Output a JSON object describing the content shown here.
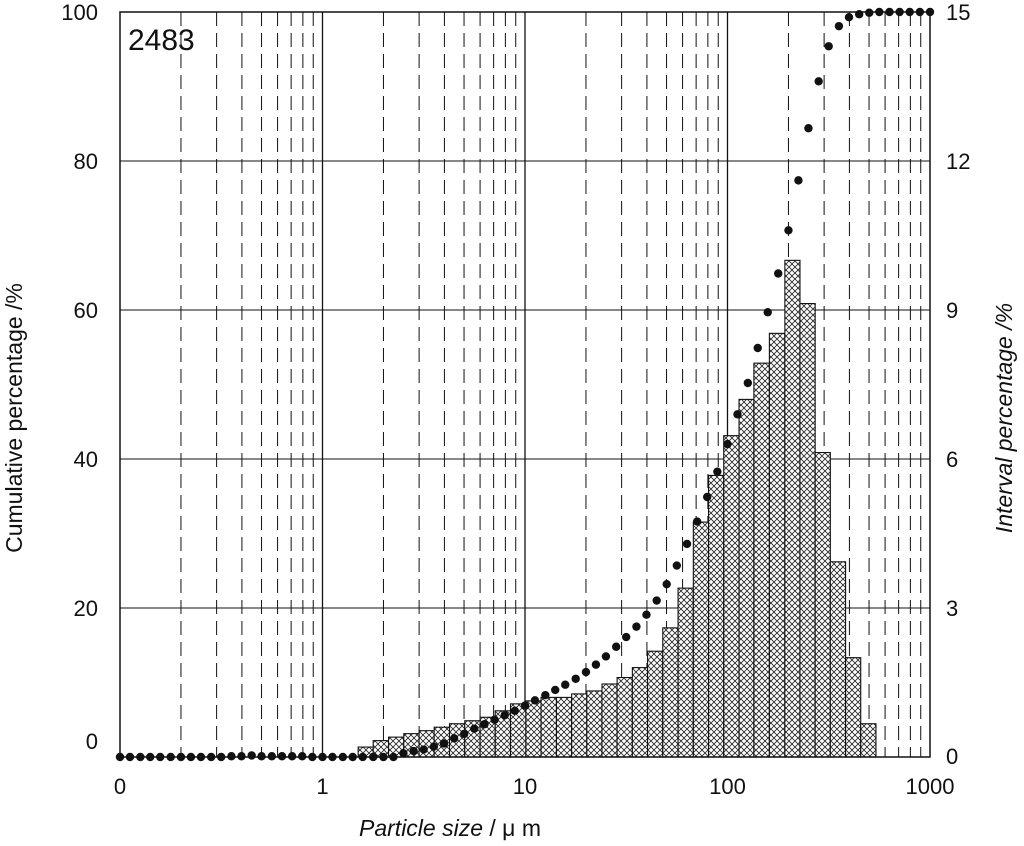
{
  "chart_data": {
    "type": "bar",
    "sample_id": "2483",
    "xlabel_italic": "Particle size",
    "xlabel_unit": " / μ m",
    "ylabel_left": "Cumulative percentage /%",
    "ylabel_right": "Interval percentage /%",
    "x_scale": "log",
    "xlim": [
      0.1,
      1000
    ],
    "x_ticks": [
      {
        "value": 0.1,
        "label": "0"
      },
      {
        "value": 1,
        "label": "1"
      },
      {
        "value": 10,
        "label": "10"
      },
      {
        "value": 100,
        "label": "100"
      },
      {
        "value": 1000,
        "label": "1000"
      }
    ],
    "ylim_left": [
      0,
      100
    ],
    "y_ticks_left": [
      0,
      20,
      40,
      60,
      80,
      100
    ],
    "ylim_right": [
      0,
      15
    ],
    "y_ticks_right": [
      0,
      3,
      6,
      9,
      12,
      15
    ],
    "grid": true,
    "legend": "none",
    "histogram": {
      "name": "Interval percentage",
      "axis": "right",
      "fill": "crosshatch",
      "bins": [
        {
          "x0": 1.5,
          "x1": 1.78,
          "value": 0.2
        },
        {
          "x0": 1.78,
          "x1": 2.12,
          "value": 0.33
        },
        {
          "x0": 2.12,
          "x1": 2.52,
          "value": 0.4
        },
        {
          "x0": 2.52,
          "x1": 3.0,
          "value": 0.47
        },
        {
          "x0": 3.0,
          "x1": 3.56,
          "value": 0.53
        },
        {
          "x0": 3.56,
          "x1": 4.24,
          "value": 0.6
        },
        {
          "x0": 4.24,
          "x1": 5.04,
          "value": 0.67
        },
        {
          "x0": 5.04,
          "x1": 6.0,
          "value": 0.73
        },
        {
          "x0": 6.0,
          "x1": 7.13,
          "value": 0.8
        },
        {
          "x0": 7.13,
          "x1": 8.48,
          "value": 0.93
        },
        {
          "x0": 8.48,
          "x1": 10.1,
          "value": 1.07
        },
        {
          "x0": 10.1,
          "x1": 12.0,
          "value": 1.13
        },
        {
          "x0": 12.0,
          "x1": 14.3,
          "value": 1.2
        },
        {
          "x0": 14.3,
          "x1": 17.0,
          "value": 1.2
        },
        {
          "x0": 17.0,
          "x1": 20.2,
          "value": 1.27
        },
        {
          "x0": 20.2,
          "x1": 24.0,
          "value": 1.33
        },
        {
          "x0": 24.0,
          "x1": 28.5,
          "value": 1.47
        },
        {
          "x0": 28.5,
          "x1": 33.9,
          "value": 1.6
        },
        {
          "x0": 33.9,
          "x1": 40.3,
          "value": 1.8
        },
        {
          "x0": 40.3,
          "x1": 47.9,
          "value": 2.13
        },
        {
          "x0": 47.9,
          "x1": 57.0,
          "value": 2.6
        },
        {
          "x0": 57.0,
          "x1": 67.8,
          "value": 3.4
        },
        {
          "x0": 67.8,
          "x1": 80.6,
          "value": 4.73
        },
        {
          "x0": 80.6,
          "x1": 95.8,
          "value": 5.67
        },
        {
          "x0": 95.8,
          "x1": 114,
          "value": 6.47
        },
        {
          "x0": 114,
          "x1": 135,
          "value": 7.2
        },
        {
          "x0": 135,
          "x1": 161,
          "value": 7.93
        },
        {
          "x0": 161,
          "x1": 192,
          "value": 8.53
        },
        {
          "x0": 192,
          "x1": 228,
          "value": 10.0
        },
        {
          "x0": 228,
          "x1": 271,
          "value": 9.13
        },
        {
          "x0": 271,
          "x1": 322,
          "value": 6.13
        },
        {
          "x0": 322,
          "x1": 383,
          "value": 3.93
        },
        {
          "x0": 383,
          "x1": 455,
          "value": 2.0
        },
        {
          "x0": 455,
          "x1": 541,
          "value": 0.67
        }
      ]
    },
    "cumulative": {
      "name": "Cumulative percentage",
      "axis": "left",
      "marker": "filled-circle",
      "points": [
        {
          "x": 0.1,
          "y": 0
        },
        {
          "x": 0.112,
          "y": 0
        },
        {
          "x": 0.126,
          "y": 0
        },
        {
          "x": 0.141,
          "y": 0
        },
        {
          "x": 0.158,
          "y": 0
        },
        {
          "x": 0.178,
          "y": 0
        },
        {
          "x": 0.2,
          "y": 0
        },
        {
          "x": 0.224,
          "y": 0
        },
        {
          "x": 0.251,
          "y": 0
        },
        {
          "x": 0.282,
          "y": 0
        },
        {
          "x": 0.316,
          "y": 0
        },
        {
          "x": 0.355,
          "y": 0.1
        },
        {
          "x": 0.398,
          "y": 0.1
        },
        {
          "x": 0.447,
          "y": 0.2
        },
        {
          "x": 0.5,
          "y": 0.1
        },
        {
          "x": 0.562,
          "y": 0.1
        },
        {
          "x": 0.631,
          "y": 0.1
        },
        {
          "x": 0.708,
          "y": 0.1
        },
        {
          "x": 0.794,
          "y": 0.1
        },
        {
          "x": 0.891,
          "y": 0
        },
        {
          "x": 1.0,
          "y": 0
        },
        {
          "x": 1.12,
          "y": 0
        },
        {
          "x": 1.26,
          "y": 0
        },
        {
          "x": 1.41,
          "y": 0
        },
        {
          "x": 1.58,
          "y": 0
        },
        {
          "x": 1.78,
          "y": 0
        },
        {
          "x": 2.0,
          "y": 0
        },
        {
          "x": 2.24,
          "y": 0
        },
        {
          "x": 2.51,
          "y": 0.5
        },
        {
          "x": 2.82,
          "y": 0.8
        },
        {
          "x": 3.16,
          "y": 1.0
        },
        {
          "x": 3.55,
          "y": 1.4
        },
        {
          "x": 3.98,
          "y": 1.8
        },
        {
          "x": 4.47,
          "y": 2.5
        },
        {
          "x": 5.01,
          "y": 3.1
        },
        {
          "x": 5.62,
          "y": 3.8
        },
        {
          "x": 6.31,
          "y": 4.4
        },
        {
          "x": 7.08,
          "y": 5.0
        },
        {
          "x": 7.94,
          "y": 5.6
        },
        {
          "x": 8.91,
          "y": 6.2
        },
        {
          "x": 10.0,
          "y": 6.9
        },
        {
          "x": 11.2,
          "y": 7.6
        },
        {
          "x": 12.6,
          "y": 8.3
        },
        {
          "x": 14.1,
          "y": 9.0
        },
        {
          "x": 15.8,
          "y": 9.7
        },
        {
          "x": 17.8,
          "y": 10.5
        },
        {
          "x": 20.0,
          "y": 11.4
        },
        {
          "x": 22.4,
          "y": 12.4
        },
        {
          "x": 25.1,
          "y": 13.5
        },
        {
          "x": 28.2,
          "y": 14.8
        },
        {
          "x": 31.6,
          "y": 16.1
        },
        {
          "x": 35.5,
          "y": 17.5
        },
        {
          "x": 39.8,
          "y": 19.1
        },
        {
          "x": 44.7,
          "y": 21.0
        },
        {
          "x": 50.1,
          "y": 23.2
        },
        {
          "x": 56.2,
          "y": 25.7
        },
        {
          "x": 63.1,
          "y": 28.6
        },
        {
          "x": 70.8,
          "y": 31.6
        },
        {
          "x": 79.4,
          "y": 34.9
        },
        {
          "x": 89.1,
          "y": 38.3
        },
        {
          "x": 100,
          "y": 42.0
        },
        {
          "x": 112,
          "y": 46.0
        },
        {
          "x": 126,
          "y": 50.2
        },
        {
          "x": 141,
          "y": 54.9
        },
        {
          "x": 158,
          "y": 59.7
        },
        {
          "x": 178,
          "y": 64.9
        },
        {
          "x": 200,
          "y": 70.7
        },
        {
          "x": 224,
          "y": 77.4
        },
        {
          "x": 251,
          "y": 84.4
        },
        {
          "x": 282,
          "y": 90.7
        },
        {
          "x": 316,
          "y": 95.4
        },
        {
          "x": 355,
          "y": 98.1
        },
        {
          "x": 398,
          "y": 99.3
        },
        {
          "x": 447,
          "y": 99.7
        },
        {
          "x": 501,
          "y": 99.9
        },
        {
          "x": 562,
          "y": 100
        },
        {
          "x": 631,
          "y": 100
        },
        {
          "x": 708,
          "y": 100
        },
        {
          "x": 794,
          "y": 100
        },
        {
          "x": 891,
          "y": 100
        },
        {
          "x": 1000,
          "y": 100
        }
      ]
    }
  }
}
